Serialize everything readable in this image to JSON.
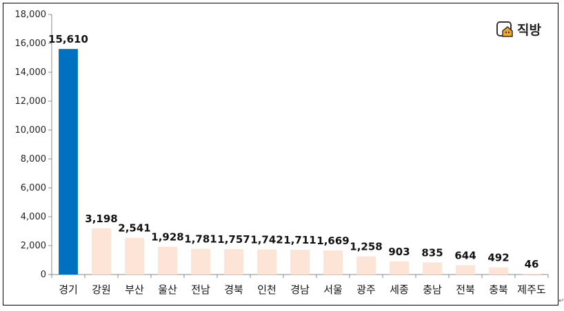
{
  "brand": {
    "logo_text": "직방",
    "logo_icon": "house-icon",
    "accent": "#F5A623"
  },
  "return_mark": "↵",
  "chart_data": {
    "type": "bar",
    "title": "",
    "xlabel": "",
    "ylabel": "",
    "ylim": [
      0,
      18000
    ],
    "yticks": [
      0,
      2000,
      4000,
      6000,
      8000,
      10000,
      12000,
      14000,
      16000,
      18000
    ],
    "categories": [
      "경기",
      "강원",
      "부산",
      "울산",
      "전남",
      "경북",
      "인천",
      "경남",
      "서울",
      "광주",
      "세종",
      "충남",
      "전북",
      "충북",
      "제주도"
    ],
    "values": [
      15610,
      3198,
      2541,
      1928,
      1781,
      1757,
      1742,
      1711,
      1669,
      1258,
      903,
      835,
      644,
      492,
      46
    ],
    "highlight_index": 0,
    "colors": {
      "highlight": "#0070C0",
      "default": "#FCE4D6"
    },
    "grid": false,
    "legend": "none"
  }
}
